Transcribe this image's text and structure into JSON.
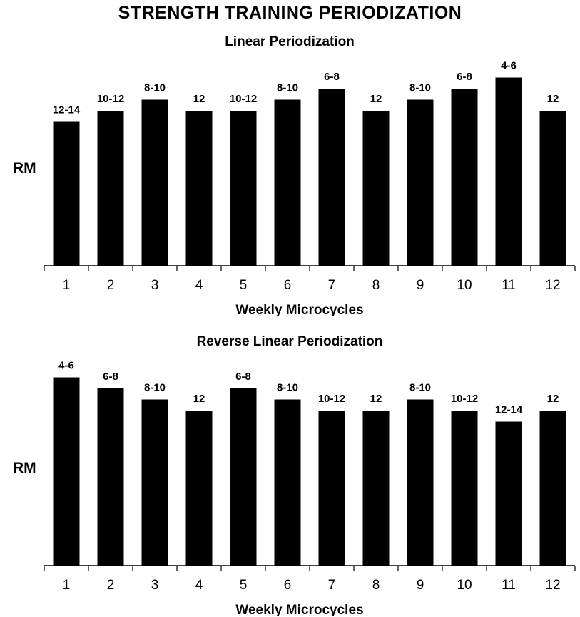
{
  "title": "STRENGTH TRAINING PERIODIZATION",
  "chart_data": [
    {
      "type": "bar",
      "title": "Linear Periodization",
      "xlabel": "Weekly Microcycles",
      "ylabel": "RM",
      "categories": [
        "1",
        "2",
        "3",
        "4",
        "5",
        "6",
        "7",
        "8",
        "9",
        "10",
        "11",
        "12"
      ],
      "values": [
        13,
        14,
        15,
        14,
        14,
        15,
        16,
        14,
        15,
        16,
        17,
        14
      ],
      "data_labels": [
        "12-14",
        "10-12",
        "8-10",
        "12",
        "10-12",
        "8-10",
        "6-8",
        "12",
        "8-10",
        "6-8",
        "4-6",
        "12"
      ],
      "ylim": [
        0,
        20
      ],
      "grid": false,
      "bar_color": "#000000"
    },
    {
      "type": "bar",
      "title": "Reverse Linear Periodization",
      "xlabel": "Weekly Microcycles",
      "ylabel": "RM",
      "categories": [
        "1",
        "2",
        "3",
        "4",
        "5",
        "6",
        "7",
        "8",
        "9",
        "10",
        "11",
        "12"
      ],
      "values": [
        17,
        16,
        15,
        14,
        16,
        15,
        14,
        14,
        15,
        14,
        13,
        14
      ],
      "data_labels": [
        "4-6",
        "6-8",
        "8-10",
        "12",
        "6-8",
        "8-10",
        "10-12",
        "12",
        "8-10",
        "10-12",
        "12-14",
        "12"
      ],
      "ylim": [
        0,
        20
      ],
      "grid": false,
      "bar_color": "#000000"
    }
  ]
}
